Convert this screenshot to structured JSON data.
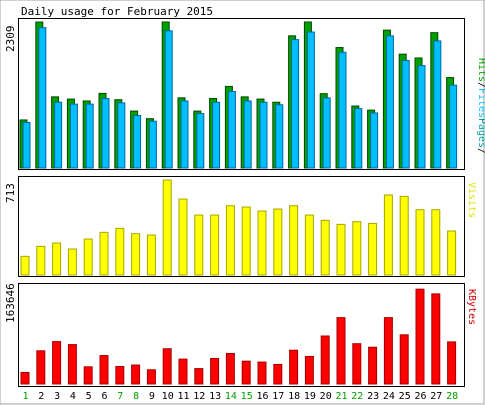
{
  "chart_data": [
    {
      "type": "bar",
      "title": "Daily usage for February 2015",
      "categories": [
        "1",
        "2",
        "3",
        "4",
        "5",
        "6",
        "7",
        "8",
        "9",
        "10",
        "11",
        "12",
        "13",
        "14",
        "15",
        "16",
        "17",
        "18",
        "19",
        "20",
        "21",
        "22",
        "23",
        "24",
        "25",
        "26",
        "27",
        "28"
      ],
      "weekend_categories": [
        "1",
        "7",
        "8",
        "14",
        "15",
        "21",
        "22",
        "28"
      ],
      "ymax_label": "2309",
      "ylim": [
        0,
        2309
      ],
      "legend": [
        "Pages",
        "/",
        "Files",
        "/",
        "Hits"
      ],
      "series": [
        {
          "name": "Hits",
          "color": "#00a000",
          "values": [
            760,
            2309,
            1125,
            1090,
            1060,
            1180,
            1080,
            900,
            780,
            2309,
            1110,
            900,
            1100,
            1290,
            1125,
            1090,
            1040,
            2090,
            2309,
            1175,
            1905,
            980,
            915,
            2180,
            1800,
            1740,
            2140,
            1430
          ]
        },
        {
          "name": "Files",
          "color": "#00bfff",
          "values": [
            720,
            2220,
            1040,
            1010,
            1010,
            1100,
            1030,
            830,
            740,
            2170,
            1060,
            860,
            1040,
            1210,
            1060,
            1040,
            1000,
            2030,
            2150,
            1110,
            1830,
            940,
            870,
            2090,
            1700,
            1620,
            2010,
            1310
          ]
        }
      ]
    },
    {
      "type": "bar",
      "ymax_label": "713",
      "ylim": [
        0,
        713
      ],
      "legend": [
        "Visits"
      ],
      "series": [
        {
          "name": "Visits",
          "color": "#ffff00",
          "values": [
            140,
            215,
            240,
            195,
            270,
            320,
            350,
            310,
            300,
            713,
            570,
            450,
            450,
            520,
            510,
            480,
            495,
            520,
            450,
            410,
            380,
            400,
            387,
            600,
            590,
            490,
            490,
            330
          ]
        }
      ]
    },
    {
      "type": "bar",
      "ymax_label": "163646",
      "ylim": [
        0,
        163646
      ],
      "legend": [
        "KBytes"
      ],
      "series": [
        {
          "name": "KBytes",
          "color": "#ff0000",
          "values": [
            19500,
            56000,
            71500,
            66500,
            29000,
            48000,
            29500,
            32000,
            24000,
            59500,
            42000,
            26000,
            43000,
            51500,
            38500,
            37000,
            33000,
            57000,
            46500,
            81000,
            112000,
            68000,
            62000,
            112000,
            83000,
            160000,
            152000,
            71000
          ]
        }
      ]
    }
  ]
}
